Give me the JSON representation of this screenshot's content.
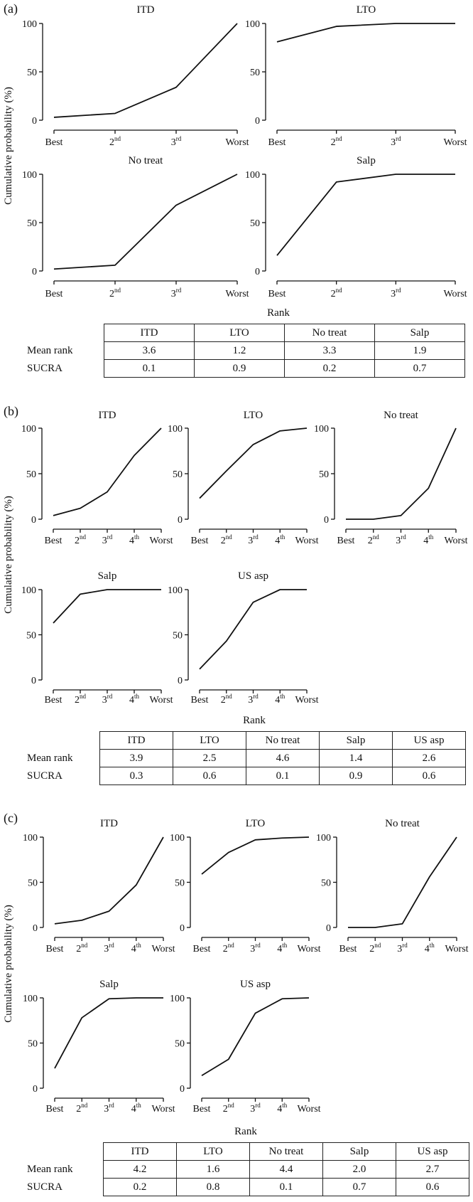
{
  "figure": {
    "ylabel": "Cumulative probability (%)",
    "rank_label": "Rank",
    "row_labels": [
      "Mean rank",
      "SUCRA"
    ]
  },
  "panels": [
    {
      "label": "(a)",
      "tables": {
        "headers": [
          "ITD",
          "LTO",
          "No treat",
          "Salp"
        ],
        "mean_rank": [
          "3.6",
          "1.2",
          "3.3",
          "1.9"
        ],
        "sucra": [
          "0.1",
          "0.9",
          "0.2",
          "0.7"
        ]
      }
    },
    {
      "label": "(b)",
      "tables": {
        "headers": [
          "ITD",
          "LTO",
          "No treat",
          "Salp",
          "US asp"
        ],
        "mean_rank": [
          "3.9",
          "2.5",
          "4.6",
          "1.4",
          "2.6"
        ],
        "sucra": [
          "0.3",
          "0.6",
          "0.1",
          "0.9",
          "0.6"
        ]
      }
    },
    {
      "label": "(c)",
      "tables": {
        "headers": [
          "ITD",
          "LTO",
          "No treat",
          "Salp",
          "US asp"
        ],
        "mean_rank": [
          "4.2",
          "1.6",
          "4.4",
          "2.0",
          "2.7"
        ],
        "sucra": [
          "0.2",
          "0.8",
          "0.1",
          "0.7",
          "0.6"
        ]
      }
    }
  ],
  "chart_data": [
    {
      "type": "line",
      "panel": "(a)",
      "title": "ITD",
      "xlabel": "Rank",
      "ylabel": "Cumulative probability (%)",
      "categories": [
        [
          "Best",
          ""
        ],
        [
          "2",
          "nd"
        ],
        [
          "3",
          "rd"
        ],
        [
          "Worst",
          ""
        ]
      ],
      "values": [
        3,
        7,
        34,
        100
      ],
      "ylim": [
        0,
        100
      ],
      "yticks": [
        0,
        50,
        100
      ]
    },
    {
      "type": "line",
      "panel": "(a)",
      "title": "LTO",
      "xlabel": "Rank",
      "ylabel": "Cumulative probability (%)",
      "categories": [
        [
          "Best",
          ""
        ],
        [
          "2",
          "nd"
        ],
        [
          "3",
          "rd"
        ],
        [
          "Worst",
          ""
        ]
      ],
      "values": [
        81,
        97,
        100,
        100
      ],
      "ylim": [
        0,
        100
      ],
      "yticks": [
        0,
        50,
        100
      ]
    },
    {
      "type": "line",
      "panel": "(a)",
      "title": "No treat",
      "xlabel": "Rank",
      "ylabel": "Cumulative probability (%)",
      "categories": [
        [
          "Best",
          ""
        ],
        [
          "2",
          "nd"
        ],
        [
          "3",
          "rd"
        ],
        [
          "Worst",
          ""
        ]
      ],
      "values": [
        2,
        6,
        68,
        100
      ],
      "ylim": [
        0,
        100
      ],
      "yticks": [
        0,
        50,
        100
      ]
    },
    {
      "type": "line",
      "panel": "(a)",
      "title": "Salp",
      "xlabel": "Rank",
      "ylabel": "Cumulative probability (%)",
      "categories": [
        [
          "Best",
          ""
        ],
        [
          "2",
          "nd"
        ],
        [
          "3",
          "rd"
        ],
        [
          "Worst",
          ""
        ]
      ],
      "values": [
        16,
        92,
        100,
        100
      ],
      "ylim": [
        0,
        100
      ],
      "yticks": [
        0,
        50,
        100
      ]
    },
    {
      "type": "line",
      "panel": "(b)",
      "title": "ITD",
      "xlabel": "Rank",
      "ylabel": "Cumulative probability (%)",
      "categories": [
        [
          "Best",
          ""
        ],
        [
          "2",
          "nd"
        ],
        [
          "3",
          "rd"
        ],
        [
          "4",
          "th"
        ],
        [
          "Worst",
          ""
        ]
      ],
      "values": [
        4,
        12,
        30,
        70,
        100
      ],
      "ylim": [
        0,
        100
      ],
      "yticks": [
        0,
        50,
        100
      ]
    },
    {
      "type": "line",
      "panel": "(b)",
      "title": "LTO",
      "xlabel": "Rank",
      "ylabel": "Cumulative probability (%)",
      "categories": [
        [
          "Best",
          ""
        ],
        [
          "2",
          "nd"
        ],
        [
          "3",
          "rd"
        ],
        [
          "4",
          "th"
        ],
        [
          "Worst",
          ""
        ]
      ],
      "values": [
        23,
        53,
        82,
        97,
        100
      ],
      "ylim": [
        0,
        100
      ],
      "yticks": [
        0,
        50,
        100
      ]
    },
    {
      "type": "line",
      "panel": "(b)",
      "title": "No treat",
      "xlabel": "Rank",
      "ylabel": "Cumulative probability (%)",
      "categories": [
        [
          "Best",
          ""
        ],
        [
          "2",
          "nd"
        ],
        [
          "3",
          "rd"
        ],
        [
          "4",
          "th"
        ],
        [
          "Worst",
          ""
        ]
      ],
      "values": [
        0,
        0,
        4,
        34,
        100
      ],
      "ylim": [
        0,
        100
      ],
      "yticks": [
        0,
        50,
        100
      ]
    },
    {
      "type": "line",
      "panel": "(b)",
      "title": "Salp",
      "xlabel": "Rank",
      "ylabel": "Cumulative probability (%)",
      "categories": [
        [
          "Best",
          ""
        ],
        [
          "2",
          "nd"
        ],
        [
          "3",
          "rd"
        ],
        [
          "4",
          "th"
        ],
        [
          "Worst",
          ""
        ]
      ],
      "values": [
        63,
        95,
        100,
        100,
        100
      ],
      "ylim": [
        0,
        100
      ],
      "yticks": [
        0,
        50,
        100
      ]
    },
    {
      "type": "line",
      "panel": "(b)",
      "title": "US asp",
      "xlabel": "Rank",
      "ylabel": "Cumulative probability (%)",
      "categories": [
        [
          "Best",
          ""
        ],
        [
          "2",
          "nd"
        ],
        [
          "3",
          "rd"
        ],
        [
          "4",
          "th"
        ],
        [
          "Worst",
          ""
        ]
      ],
      "values": [
        12,
        43,
        86,
        100,
        100
      ],
      "ylim": [
        0,
        100
      ],
      "yticks": [
        0,
        50,
        100
      ]
    },
    {
      "type": "line",
      "panel": "(c)",
      "title": "ITD",
      "xlabel": "Rank",
      "ylabel": "Cumulative probability (%)",
      "categories": [
        [
          "Best",
          ""
        ],
        [
          "2",
          "nd"
        ],
        [
          "3",
          "rd"
        ],
        [
          "4",
          "th"
        ],
        [
          "Worst",
          ""
        ]
      ],
      "values": [
        4,
        8,
        18,
        47,
        100
      ],
      "ylim": [
        0,
        100
      ],
      "yticks": [
        0,
        50,
        100
      ]
    },
    {
      "type": "line",
      "panel": "(c)",
      "title": "LTO",
      "xlabel": "Rank",
      "ylabel": "Cumulative probability (%)",
      "categories": [
        [
          "Best",
          ""
        ],
        [
          "2",
          "nd"
        ],
        [
          "3",
          "rd"
        ],
        [
          "4",
          "th"
        ],
        [
          "Worst",
          ""
        ]
      ],
      "values": [
        59,
        83,
        97,
        99,
        100
      ],
      "ylim": [
        0,
        100
      ],
      "yticks": [
        0,
        50,
        100
      ]
    },
    {
      "type": "line",
      "panel": "(c)",
      "title": "No treat",
      "xlabel": "Rank",
      "ylabel": "Cumulative probability (%)",
      "categories": [
        [
          "Best",
          ""
        ],
        [
          "2",
          "nd"
        ],
        [
          "3",
          "rd"
        ],
        [
          "4",
          "th"
        ],
        [
          "Worst",
          ""
        ]
      ],
      "values": [
        0,
        0,
        4,
        56,
        100
      ],
      "ylim": [
        0,
        100
      ],
      "yticks": [
        0,
        50,
        100
      ]
    },
    {
      "type": "line",
      "panel": "(c)",
      "title": "Salp",
      "xlabel": "Rank",
      "ylabel": "Cumulative probability (%)",
      "categories": [
        [
          "Best",
          ""
        ],
        [
          "2",
          "nd"
        ],
        [
          "3",
          "rd"
        ],
        [
          "4",
          "th"
        ],
        [
          "Worst",
          ""
        ]
      ],
      "values": [
        22,
        78,
        99,
        100,
        100
      ],
      "ylim": [
        0,
        100
      ],
      "yticks": [
        0,
        50,
        100
      ]
    },
    {
      "type": "line",
      "panel": "(c)",
      "title": "US asp",
      "xlabel": "Rank",
      "ylabel": "Cumulative probability (%)",
      "categories": [
        [
          "Best",
          ""
        ],
        [
          "2",
          "nd"
        ],
        [
          "3",
          "rd"
        ],
        [
          "4",
          "th"
        ],
        [
          "Worst",
          ""
        ]
      ],
      "values": [
        14,
        32,
        83,
        99,
        100
      ],
      "ylim": [
        0,
        100
      ],
      "yticks": [
        0,
        50,
        100
      ]
    }
  ]
}
